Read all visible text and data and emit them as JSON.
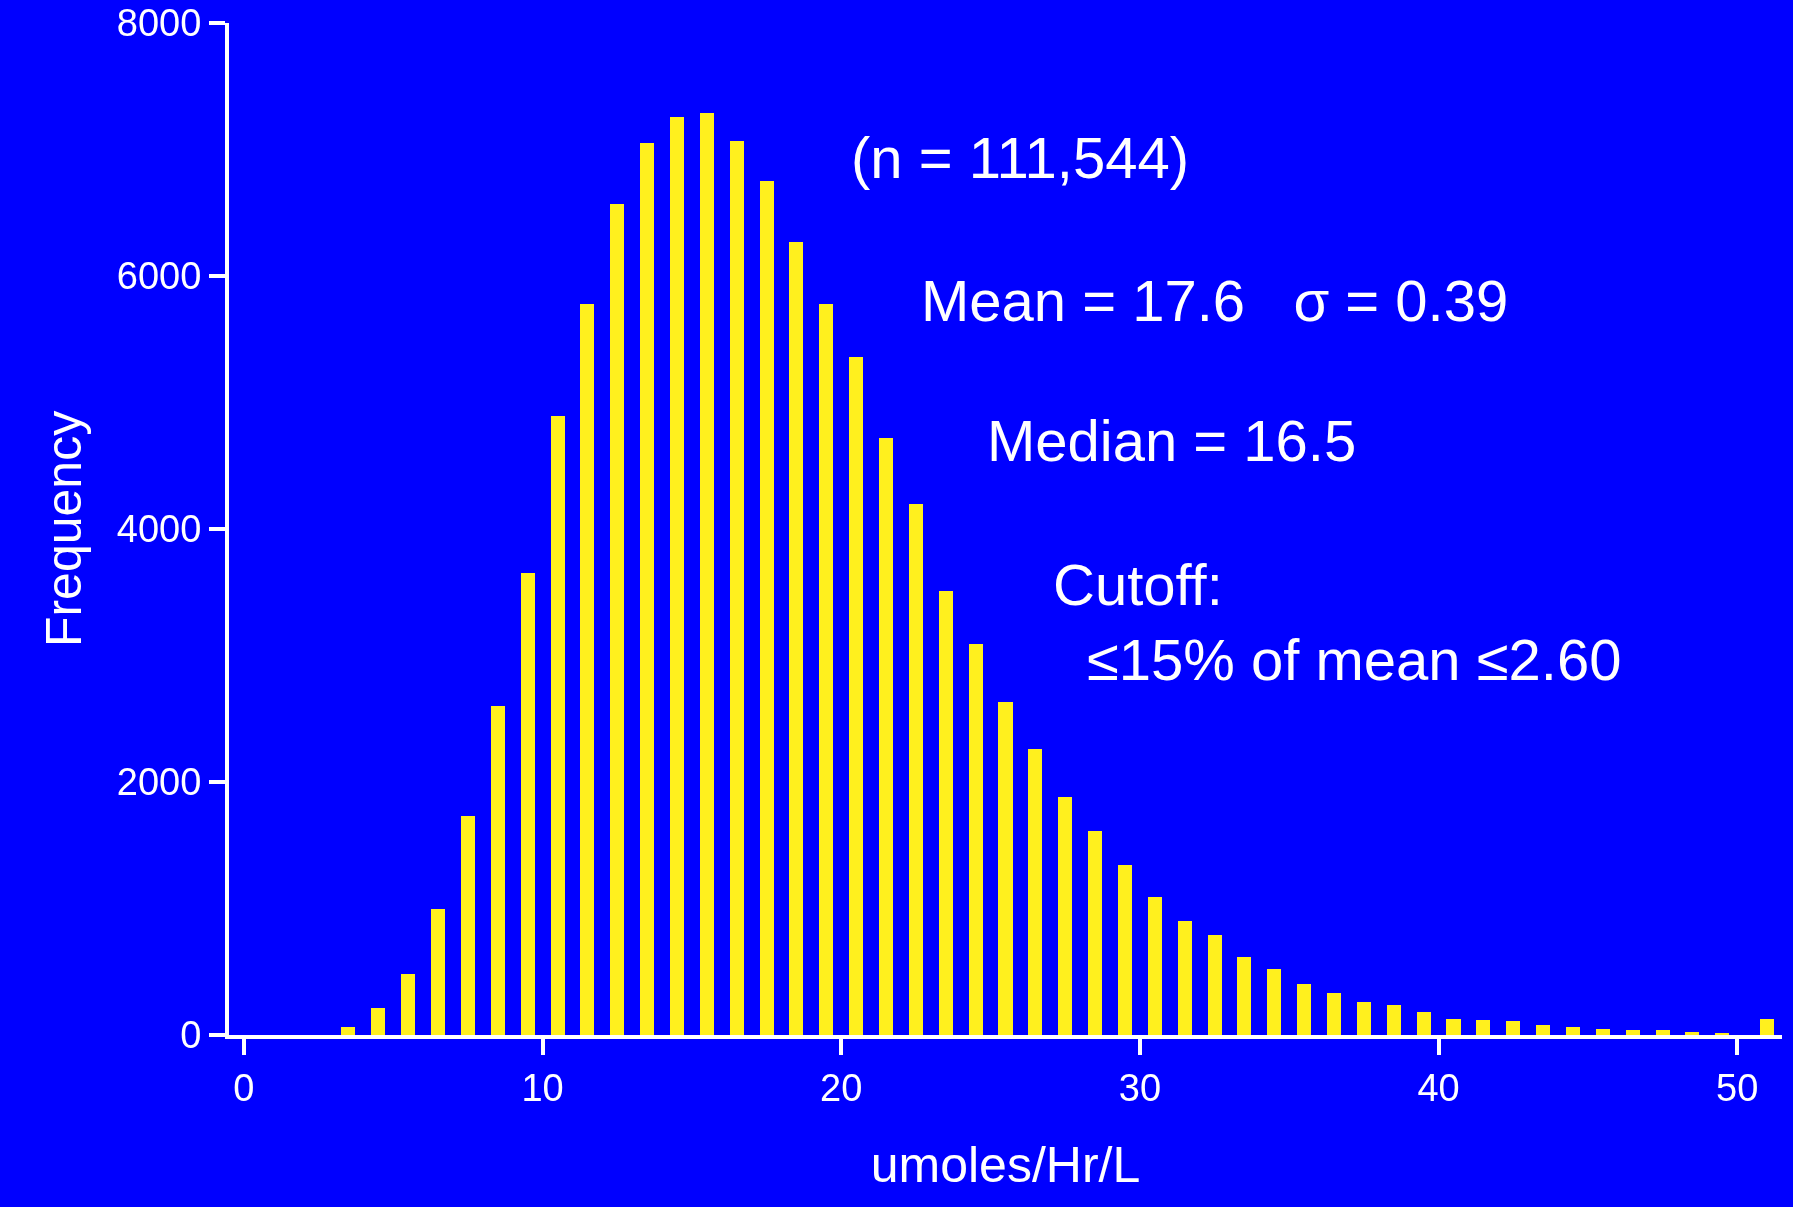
{
  "chart_data": {
    "type": "bar",
    "xlabel": "umoles/Hr/L",
    "ylabel": "Frequency",
    "x": [
      3.5,
      4.5,
      5.5,
      6.5,
      7.5,
      8.5,
      9.5,
      10.5,
      11.5,
      12.5,
      13.5,
      14.5,
      15.5,
      16.5,
      17.5,
      18.5,
      19.5,
      20.5,
      21.5,
      22.5,
      23.5,
      24.5,
      25.5,
      26.5,
      27.5,
      28.5,
      29.5,
      30.5,
      31.5,
      32.5,
      33.5,
      34.5,
      35.5,
      36.5,
      37.5,
      38.5,
      39.5,
      40.5,
      41.5,
      42.5,
      43.5,
      44.5,
      45.5,
      46.5,
      47.5,
      48.5,
      49.5,
      51
    ],
    "values": [
      60,
      210,
      480,
      1000,
      1730,
      2600,
      3650,
      4890,
      5780,
      6570,
      7050,
      7260,
      7290,
      7070,
      6750,
      6270,
      5780,
      5360,
      4720,
      4200,
      3510,
      3090,
      2630,
      2260,
      1880,
      1610,
      1340,
      1090,
      900,
      790,
      620,
      520,
      400,
      330,
      260,
      240,
      180,
      130,
      120,
      110,
      80,
      60,
      45,
      37,
      37,
      20,
      10,
      130
    ],
    "color": "#fff01e",
    "xlim": [
      -0.5,
      51.5
    ],
    "xticks": [
      0,
      10,
      20,
      30,
      40,
      50
    ],
    "ylim": [
      0,
      8000
    ],
    "yticks": [
      0,
      2000,
      4000,
      6000,
      8000
    ],
    "grid": false,
    "legend": false,
    "annotations": [
      "(n = 111,544)",
      "Mean = 17.6   σ = 0.39",
      "Median = 16.5",
      "Cutoff:",
      "≤15% of mean ≤2.60"
    ]
  }
}
